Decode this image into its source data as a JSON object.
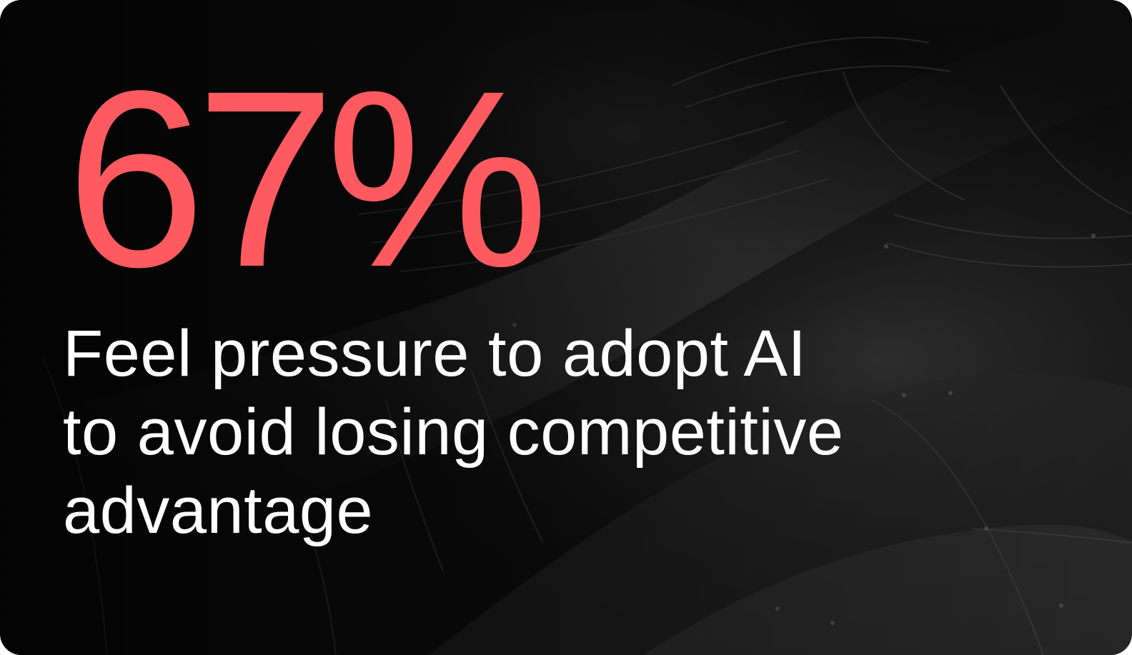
{
  "theme": {
    "stat_color": "#FF5A5F",
    "caption_color": "#FFFFFF",
    "background_color": "#0B0B0B"
  },
  "stat": {
    "value": "67%"
  },
  "caption": {
    "lines": [
      "Feel pressure to adopt AI",
      "to avoid losing competitive",
      "advantage"
    ]
  },
  "background": {
    "description_icon": "abstract-metal-architecture-photo"
  }
}
